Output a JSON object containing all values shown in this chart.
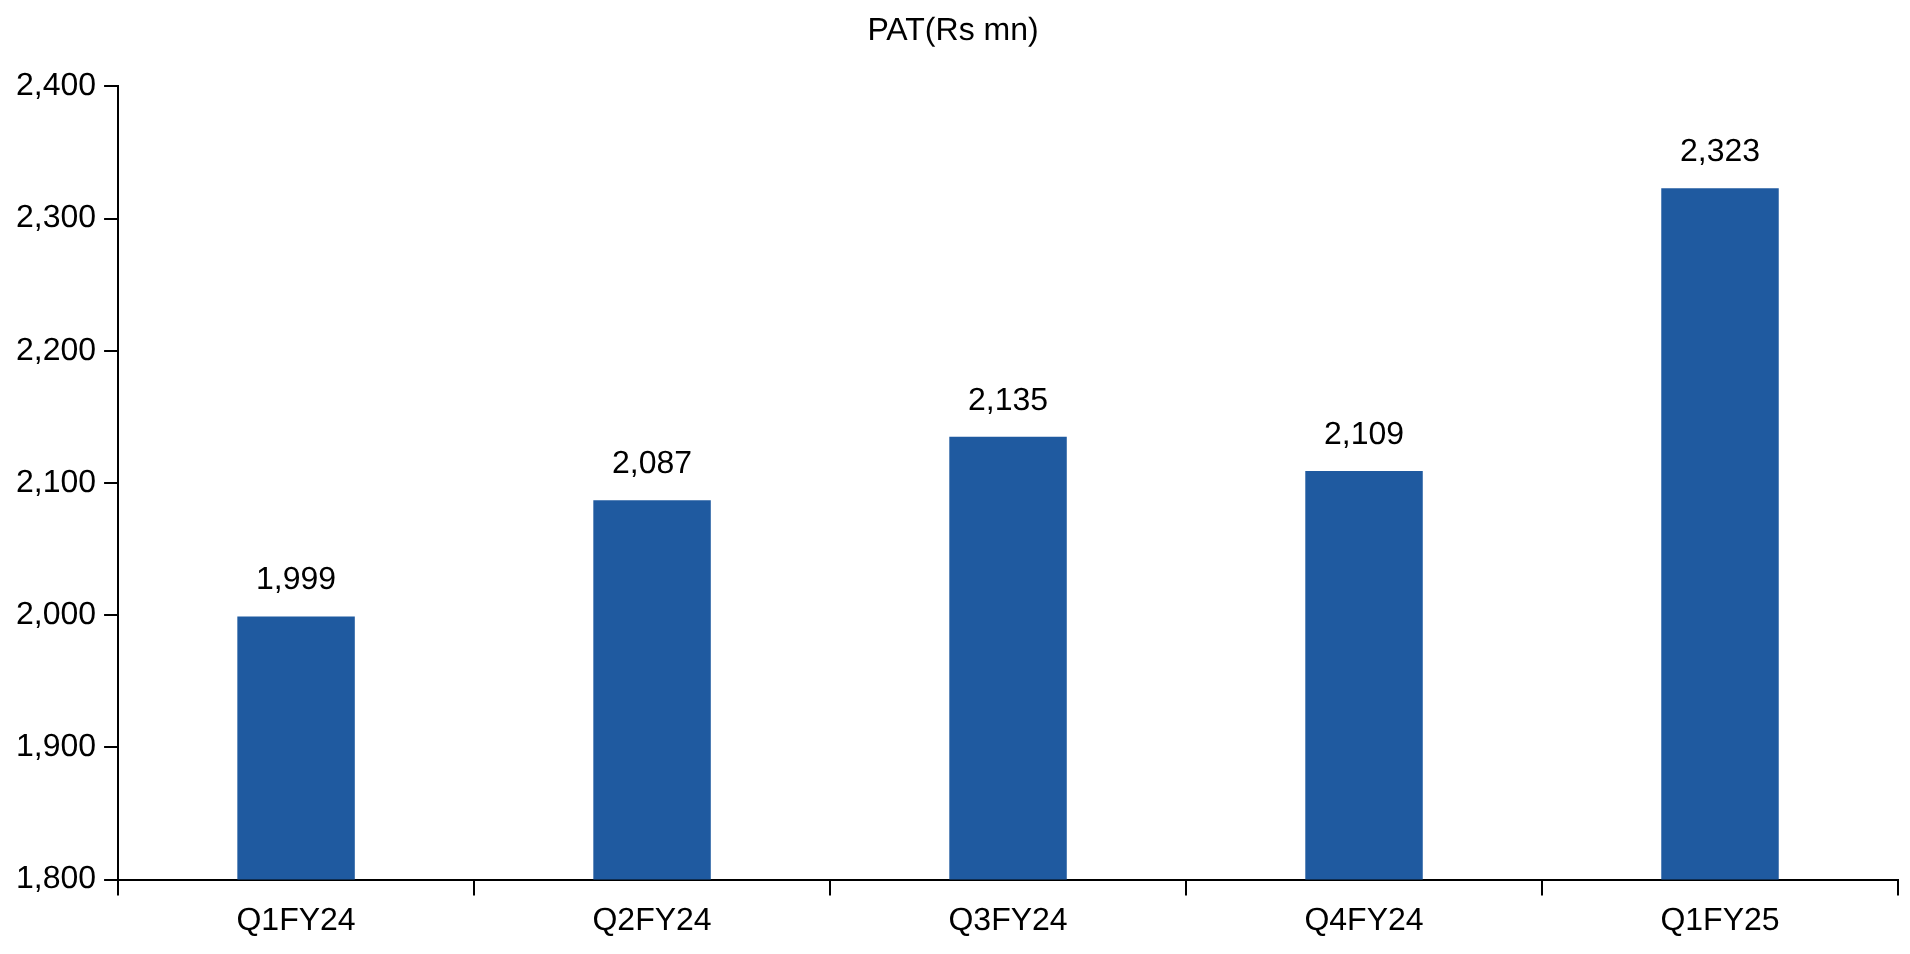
{
  "chart_data": {
    "type": "bar",
    "title": "PAT(Rs mn)",
    "categories": [
      "Q1FY24",
      "Q2FY24",
      "Q3FY24",
      "Q4FY24",
      "Q1FY25"
    ],
    "values": [
      1999,
      2087,
      2135,
      2109,
      2323
    ],
    "value_labels": [
      "1,999",
      "2,087",
      "2,135",
      "2,109",
      "2,323"
    ],
    "color": "#1f5aa0",
    "ylim": [
      1800,
      2400
    ],
    "yticks": [
      {
        "value": 1800,
        "label": "1,800"
      },
      {
        "value": 1900,
        "label": "1,900"
      },
      {
        "value": 2000,
        "label": "2,000"
      },
      {
        "value": 2100,
        "label": "2,100"
      },
      {
        "value": 2200,
        "label": "2,200"
      },
      {
        "value": 2300,
        "label": "2,300"
      },
      {
        "value": 2400,
        "label": "2,400"
      }
    ],
    "legend": false
  }
}
